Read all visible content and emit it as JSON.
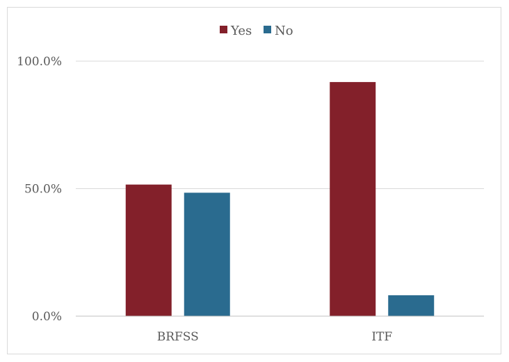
{
  "chart_data": {
    "type": "bar",
    "categories": [
      "BRFSS",
      "ITF"
    ],
    "series": [
      {
        "name": "Yes",
        "values": [
          51.6,
          91.8
        ]
      },
      {
        "name": "No",
        "values": [
          48.4,
          8.2
        ]
      }
    ],
    "y_ticks": [
      "0.0%",
      "50.0%",
      "100.0%"
    ],
    "ylim": [
      0,
      100
    ],
    "legend_position": "top",
    "grid": true,
    "colors": {
      "Yes": "#83202A",
      "No": "#2A6B8F",
      "grid": "#d9d9d9",
      "axis": "#bfbfbf"
    }
  }
}
